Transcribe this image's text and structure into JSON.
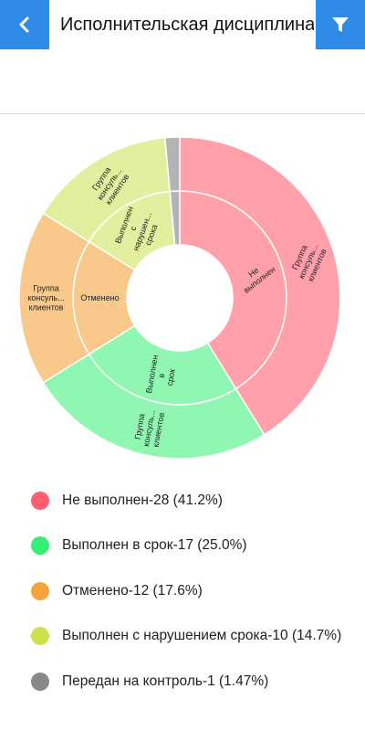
{
  "header": {
    "title": "Исполнительская дисциплина",
    "back_icon": "chevron-left-icon",
    "filter_icon": "filter-icon",
    "accent": "#2e8be8"
  },
  "chart_data": {
    "type": "sunburst",
    "inner": [
      {
        "label": "Не выполнен",
        "value": 28,
        "color": "#ffa0aa"
      },
      {
        "label": "Выполнен в срок",
        "value": 17,
        "color": "#8ff7b2"
      },
      {
        "label": "Отменено",
        "value": 12,
        "color": "#f9c98b"
      },
      {
        "label": "Выполнен с нарушением срока",
        "value": 10,
        "color": "#e2ef9f"
      },
      {
        "label": "",
        "value": 1,
        "color": "#b4b4b4"
      }
    ],
    "inner_labels": [
      "Не выполнен",
      "Выполнен в срок",
      "Отменено",
      "Выполнен с нарушением срока",
      ""
    ],
    "outer": [
      {
        "label": "Группа консуль... клиентов",
        "value": 28,
        "color": "#ffa0aa"
      },
      {
        "label": "Группа консуль... клиентов",
        "value": 17,
        "color": "#8ff7b2"
      },
      {
        "label": "Группа консуль... клиентов",
        "value": 12,
        "color": "#f9c98b"
      },
      {
        "label": "Группа консуль... клиентов",
        "value": 10,
        "color": "#e2ef9f"
      },
      {
        "label": "",
        "value": 1,
        "color": "#b4b4b4"
      }
    ],
    "legend": [
      {
        "text": "Не выполнен-28 (41.2%)",
        "color": "#ff5f6e"
      },
      {
        "text": "Выполнен в срок-17 (25.0%)",
        "color": "#34ee77"
      },
      {
        "text": "Отменено-12 (17.6%)",
        "color": "#f5a33a"
      },
      {
        "text": "Выполнен с нарушением срока-10 (14.7%)",
        "color": "#cde24a"
      },
      {
        "text": "Передан на контроль-1 (1.47%)",
        "color": "#888888"
      }
    ]
  }
}
